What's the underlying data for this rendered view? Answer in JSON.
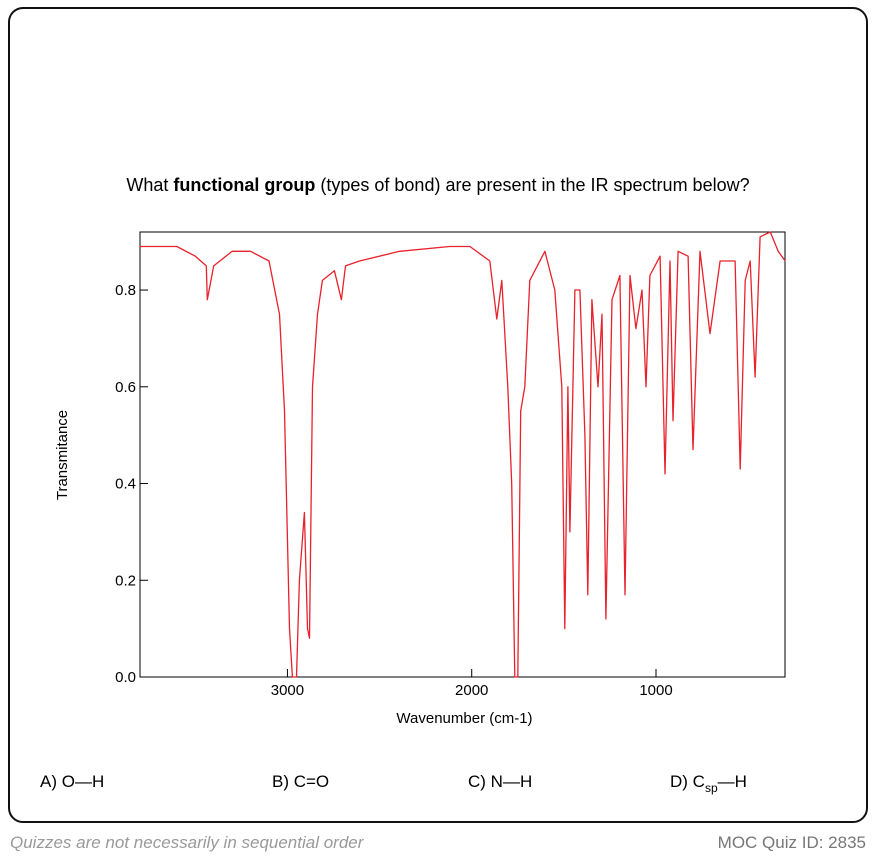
{
  "question": {
    "before": "What ",
    "bold": "functional group",
    "after": " (types of bond) are present in the IR spectrum below?"
  },
  "chart_data": {
    "type": "line",
    "xlabel": "Wavenumber (cm-1)",
    "ylabel": "Transmitance",
    "xlim": [
      3800,
      300
    ],
    "ylim": [
      0,
      0.92
    ],
    "xticks": [
      3000,
      2000,
      1000
    ],
    "yticks": [
      {
        "value": 0,
        "label": "0.0"
      },
      0.2,
      0.4,
      0.6,
      0.8
    ],
    "color": "#e8212b",
    "x": [
      3804,
      3700,
      3600,
      3500,
      3440,
      3435,
      3400,
      3300,
      3200,
      3100,
      3043,
      3016,
      2989,
      2973,
      2951,
      2935,
      2908,
      2891,
      2880,
      2864,
      2837,
      2810,
      2745,
      2707,
      2685,
      2609,
      2391,
      2120,
      2010,
      1902,
      1864,
      1837,
      1804,
      1783,
      1766,
      1750,
      1734,
      1712,
      1685,
      1603,
      1549,
      1511,
      1495,
      1478,
      1467,
      1440,
      1413,
      1386,
      1370,
      1348,
      1315,
      1293,
      1272,
      1239,
      1196,
      1168,
      1141,
      1109,
      1076,
      1054,
      1033,
      978,
      951,
      924,
      908,
      880,
      826,
      799,
      761,
      707,
      652,
      571,
      543,
      516,
      489,
      462,
      435,
      380,
      337,
      299
    ],
    "values": [
      0.89,
      0.89,
      0.89,
      0.87,
      0.85,
      0.78,
      0.85,
      0.88,
      0.88,
      0.86,
      0.75,
      0.55,
      0.1,
      0.0,
      0.0,
      0.2,
      0.34,
      0.1,
      0.08,
      0.6,
      0.75,
      0.82,
      0.84,
      0.78,
      0.85,
      0.86,
      0.88,
      0.89,
      0.89,
      0.86,
      0.74,
      0.82,
      0.6,
      0.4,
      0.0,
      0.0,
      0.55,
      0.6,
      0.82,
      0.88,
      0.8,
      0.6,
      0.1,
      0.6,
      0.3,
      0.8,
      0.8,
      0.5,
      0.17,
      0.78,
      0.6,
      0.75,
      0.12,
      0.78,
      0.83,
      0.17,
      0.83,
      0.72,
      0.8,
      0.6,
      0.83,
      0.87,
      0.42,
      0.86,
      0.53,
      0.88,
      0.87,
      0.47,
      0.88,
      0.71,
      0.86,
      0.86,
      0.43,
      0.82,
      0.86,
      0.62,
      0.91,
      0.92,
      0.88,
      0.86
    ]
  },
  "options": [
    {
      "text": "A) O—H"
    },
    {
      "text": "B) C=O"
    },
    {
      "text": "C) N—H"
    },
    {
      "text": "D) C",
      "sub": "sp",
      "rest": "—H"
    }
  ],
  "footer": {
    "note": "Quizzes are not necessarily in sequential order",
    "id": "MOC Quiz ID: 2835"
  }
}
